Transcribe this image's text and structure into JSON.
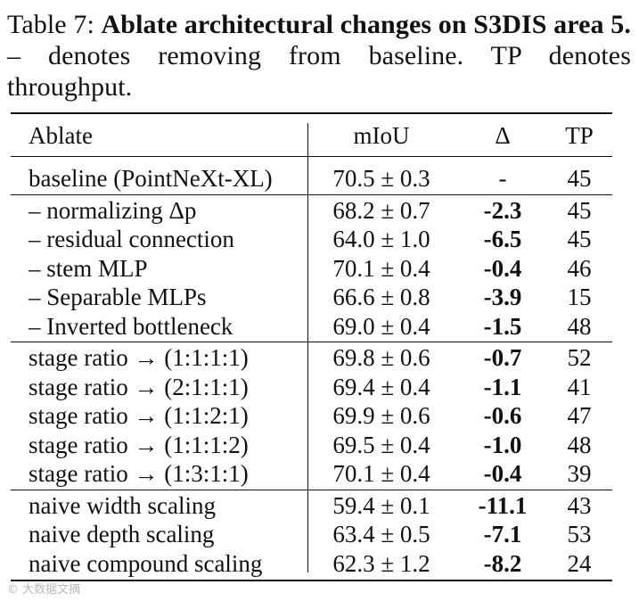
{
  "caption": {
    "label": "Table 7:",
    "bold_text": "Ablate architectural changes on S3DIS area 5.",
    "rest": "– denotes removing from baseline. TP denotes throughput."
  },
  "table": {
    "headers": {
      "ablate": "Ablate",
      "miou": "mIoU",
      "delta": "Δ",
      "tp": "TP"
    },
    "groups": [
      {
        "rows": [
          {
            "ablate": "baseline (PointNeXt-XL)",
            "miou": "70.5 ± 0.3",
            "delta": "-",
            "tp": "45",
            "bold": false
          }
        ]
      },
      {
        "rows": [
          {
            "ablate": "– normalizing Δp",
            "miou": "68.2 ± 0.7",
            "delta": "-2.3",
            "tp": "45",
            "bold": true
          },
          {
            "ablate": "– residual connection",
            "miou": "64.0 ± 1.0",
            "delta": "-6.5",
            "tp": "45",
            "bold": true
          },
          {
            "ablate": "– stem MLP",
            "miou": "70.1 ± 0.4",
            "delta": "-0.4",
            "tp": "46",
            "bold": true
          },
          {
            "ablate": "– Separable MLPs",
            "miou": "66.6 ± 0.8",
            "delta": "-3.9",
            "tp": "15",
            "bold": true
          },
          {
            "ablate": "– Inverted bottleneck",
            "miou": "69.0 ± 0.4",
            "delta": "-1.5",
            "tp": "48",
            "bold": true
          }
        ]
      },
      {
        "rows": [
          {
            "ablate": "stage ratio → (1:1:1:1)",
            "miou": "69.8 ± 0.6",
            "delta": "-0.7",
            "tp": "52",
            "bold": true
          },
          {
            "ablate": "stage ratio → (2:1:1:1)",
            "miou": "69.4 ± 0.4",
            "delta": "-1.1",
            "tp": "41",
            "bold": true
          },
          {
            "ablate": "stage ratio → (1:1:2:1)",
            "miou": "69.9 ± 0.6",
            "delta": "-0.6",
            "tp": "47",
            "bold": true
          },
          {
            "ablate": "stage ratio → (1:1:1:2)",
            "miou": "69.5 ± 0.4",
            "delta": "-1.0",
            "tp": "48",
            "bold": true
          },
          {
            "ablate": "stage ratio → (1:3:1:1)",
            "miou": "70.1 ± 0.4",
            "delta": "-0.4",
            "tp": "39",
            "bold": true
          }
        ]
      },
      {
        "rows": [
          {
            "ablate": "naive width scaling",
            "miou": "59.4 ± 0.1",
            "delta": "-11.1",
            "tp": "43",
            "bold": true
          },
          {
            "ablate": "naive depth scaling",
            "miou": "63.4 ± 0.5",
            "delta": "-7.1",
            "tp": "53",
            "bold": true
          },
          {
            "ablate": "naive compound scaling",
            "miou": "62.3 ± 1.2",
            "delta": "-8.2",
            "tp": "24",
            "bold": true
          }
        ]
      }
    ]
  },
  "watermark": "© 大数据文摘"
}
